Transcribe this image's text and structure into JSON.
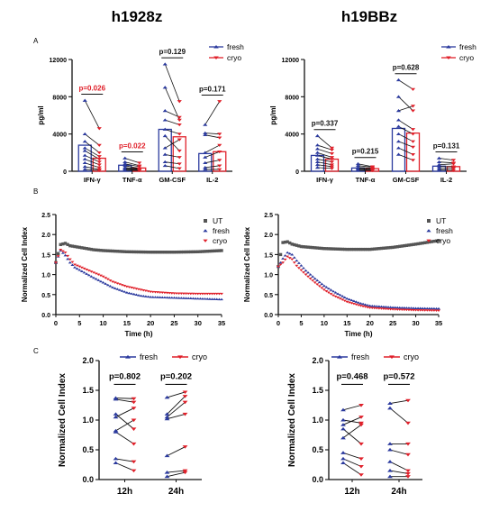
{
  "figure": {
    "col_titles": [
      "h1928z",
      "h19BBz"
    ],
    "panel_letters": [
      "A",
      "B",
      "C"
    ]
  },
  "colors": {
    "fresh": "#2b3a9e",
    "cryo": "#e0202a",
    "ut": "#555555",
    "sig": "#e0202a",
    "axis": "#111111"
  },
  "chart_data": [
    {
      "id": "A-left",
      "type": "bar",
      "title": "h1928z",
      "ylabel": "pg/ml",
      "ylim": [
        0,
        12000
      ],
      "yticks": [
        0,
        4000,
        8000,
        12000
      ],
      "categories": [
        "IFN-γ",
        "TNF-α",
        "GM-CSF",
        "IL-2"
      ],
      "legend": [
        "fresh",
        "cryo"
      ],
      "legend_position": "top-right",
      "series": [
        {
          "name": "fresh",
          "values": [
            2800,
            650,
            4500,
            1900
          ]
        },
        {
          "name": "cryo",
          "values": [
            1400,
            350,
            3700,
            2100
          ]
        }
      ],
      "pvalues": [
        {
          "text": "p=0.026",
          "significant": true
        },
        {
          "text": "p=0.022",
          "significant": true
        },
        {
          "text": "p=0.129",
          "significant": false
        },
        {
          "text": "p=0.171",
          "significant": false
        }
      ],
      "pairs": [
        [
          [
            7600,
            4600
          ],
          [
            4000,
            2800
          ],
          [
            3200,
            2000
          ],
          [
            2500,
            1600
          ],
          [
            2200,
            1300
          ],
          [
            1700,
            1000
          ],
          [
            1300,
            700
          ],
          [
            900,
            400
          ],
          [
            500,
            200
          ],
          [
            200,
            100
          ]
        ],
        [
          [
            1400,
            900
          ],
          [
            1000,
            600
          ],
          [
            800,
            500
          ],
          [
            600,
            300
          ],
          [
            400,
            250
          ],
          [
            300,
            200
          ],
          [
            200,
            150
          ],
          [
            100,
            80
          ]
        ],
        [
          [
            11500,
            7500
          ],
          [
            9000,
            5500
          ],
          [
            6500,
            5800
          ],
          [
            5500,
            5000
          ],
          [
            4500,
            4000
          ],
          [
            3800,
            2200
          ],
          [
            2500,
            3400
          ],
          [
            1800,
            1500
          ],
          [
            1000,
            800
          ],
          [
            600,
            300
          ]
        ],
        [
          [
            5000,
            7500
          ],
          [
            4100,
            4000
          ],
          [
            3900,
            3600
          ],
          [
            2000,
            2800
          ],
          [
            1500,
            2100
          ],
          [
            900,
            1200
          ],
          [
            400,
            600
          ],
          [
            200,
            200
          ]
        ]
      ]
    },
    {
      "id": "A-right",
      "type": "bar",
      "title": "h19BBz",
      "ylabel": "pg/ml",
      "ylim": [
        0,
        12000
      ],
      "yticks": [
        0,
        4000,
        8000,
        12000
      ],
      "categories": [
        "IFN-γ",
        "TNF-α",
        "GM-CSF",
        "IL-2"
      ],
      "legend": [
        "fresh",
        "cryo"
      ],
      "legend_position": "top-right",
      "series": [
        {
          "name": "fresh",
          "values": [
            1700,
            350,
            4600,
            550
          ]
        },
        {
          "name": "cryo",
          "values": [
            1300,
            280,
            4100,
            500
          ]
        }
      ],
      "pvalues": [
        {
          "text": "p=0.337",
          "significant": false
        },
        {
          "text": "p=0.215",
          "significant": false
        },
        {
          "text": "p=0.628",
          "significant": false
        },
        {
          "text": "p=0.131",
          "significant": false
        }
      ],
      "pairs": [
        [
          [
            3800,
            2500
          ],
          [
            2800,
            2300
          ],
          [
            2400,
            1900
          ],
          [
            2000,
            1500
          ],
          [
            1700,
            1300
          ],
          [
            1300,
            1000
          ],
          [
            1000,
            700
          ],
          [
            700,
            500
          ],
          [
            400,
            300
          ]
        ],
        [
          [
            800,
            500
          ],
          [
            600,
            450
          ],
          [
            400,
            350
          ],
          [
            300,
            250
          ],
          [
            200,
            150
          ],
          [
            100,
            80
          ]
        ],
        [
          [
            9800,
            8800
          ],
          [
            8000,
            6500
          ],
          [
            6500,
            7000
          ],
          [
            5500,
            4500
          ],
          [
            4800,
            4000
          ],
          [
            4000,
            3200
          ],
          [
            3200,
            2600
          ],
          [
            2500,
            1800
          ],
          [
            1800,
            1200
          ]
        ],
        [
          [
            1400,
            1200
          ],
          [
            1000,
            900
          ],
          [
            700,
            800
          ],
          [
            500,
            500
          ],
          [
            300,
            300
          ],
          [
            150,
            100
          ]
        ]
      ]
    },
    {
      "id": "B-left",
      "type": "line",
      "xlabel": "Time (h)",
      "ylabel": "Normalized Cell Index",
      "xlim": [
        0,
        35
      ],
      "ylim": [
        0,
        2.5
      ],
      "xticks": [
        0,
        5,
        10,
        15,
        20,
        25,
        30,
        35
      ],
      "yticks": [
        0,
        0.5,
        1.0,
        1.5,
        2.0,
        2.5
      ],
      "ytick_labels": [
        "0.0",
        "0.5",
        "1.0",
        "1.5",
        "2.0",
        "2.5"
      ],
      "legend": [
        "UT",
        "fresh",
        "cryo"
      ],
      "legend_position": "top-right",
      "series": [
        {
          "name": "UT",
          "x": [
            0,
            1,
            2,
            3,
            5,
            8,
            10,
            15,
            20,
            25,
            30,
            35
          ],
          "y": [
            1.3,
            1.75,
            1.78,
            1.72,
            1.68,
            1.62,
            1.6,
            1.57,
            1.56,
            1.56,
            1.57,
            1.6
          ]
        },
        {
          "name": "fresh",
          "x": [
            0,
            1,
            2,
            3,
            4,
            6,
            8,
            10,
            12,
            15,
            18,
            20,
            25,
            30,
            35
          ],
          "y": [
            1.3,
            1.6,
            1.48,
            1.3,
            1.18,
            1.05,
            0.92,
            0.8,
            0.68,
            0.55,
            0.47,
            0.44,
            0.42,
            0.4,
            0.38
          ]
        },
        {
          "name": "cryo",
          "x": [
            0,
            1,
            2,
            3,
            4,
            6,
            8,
            10,
            12,
            15,
            18,
            20,
            25,
            30,
            35
          ],
          "y": [
            1.3,
            1.62,
            1.55,
            1.38,
            1.25,
            1.15,
            1.05,
            0.95,
            0.82,
            0.7,
            0.62,
            0.57,
            0.53,
            0.52,
            0.52
          ]
        }
      ]
    },
    {
      "id": "B-right",
      "type": "line",
      "xlabel": "Time (h)",
      "ylabel": "Normalized Cell Index",
      "xlim": [
        0,
        35
      ],
      "ylim": [
        0,
        2.5
      ],
      "xticks": [
        0,
        5,
        10,
        15,
        20,
        25,
        30,
        35
      ],
      "yticks": [
        0,
        0.5,
        1.0,
        1.5,
        2.0,
        2.5
      ],
      "ytick_labels": [
        "0.0",
        "0.5",
        "1.0",
        "1.5",
        "2.0",
        "2.5"
      ],
      "legend": [
        "UT",
        "fresh",
        "cryo"
      ],
      "legend_position": "top-right",
      "series": [
        {
          "name": "UT",
          "x": [
            0,
            1,
            2,
            3,
            5,
            10,
            15,
            20,
            25,
            30,
            35
          ],
          "y": [
            1.2,
            1.8,
            1.82,
            1.76,
            1.7,
            1.65,
            1.63,
            1.63,
            1.68,
            1.76,
            1.85
          ]
        },
        {
          "name": "fresh",
          "x": [
            0,
            1,
            2,
            3,
            4,
            6,
            8,
            10,
            12,
            15,
            18,
            20,
            25,
            30,
            35
          ],
          "y": [
            1.2,
            1.4,
            1.55,
            1.5,
            1.35,
            1.1,
            0.9,
            0.72,
            0.58,
            0.4,
            0.28,
            0.22,
            0.18,
            0.16,
            0.15
          ]
        },
        {
          "name": "cryo",
          "x": [
            0,
            1,
            2,
            3,
            4,
            6,
            8,
            10,
            12,
            15,
            18,
            20,
            25,
            30,
            35
          ],
          "y": [
            1.2,
            1.3,
            1.45,
            1.38,
            1.22,
            1.0,
            0.8,
            0.62,
            0.48,
            0.32,
            0.22,
            0.17,
            0.13,
            0.11,
            0.1
          ]
        }
      ]
    },
    {
      "id": "C-left",
      "type": "scatter",
      "ylabel": "Normalized Cell Index",
      "ylim": [
        0,
        2.0
      ],
      "yticks": [
        0,
        0.5,
        1.0,
        1.5,
        2.0
      ],
      "ytick_labels": [
        "0.0",
        "0.5",
        "1.0",
        "1.5",
        "2.0"
      ],
      "categories": [
        "12h",
        "24h"
      ],
      "legend": [
        "fresh",
        "cryo"
      ],
      "legend_position": "top",
      "pvalues": [
        "p=0.802",
        "p=0.202"
      ],
      "pairs": [
        [
          [
            1.37,
            1.36
          ],
          [
            1.35,
            1.3
          ],
          [
            1.1,
            0.85
          ],
          [
            1.05,
            1.2
          ],
          [
            0.82,
            1.0
          ],
          [
            0.8,
            0.6
          ],
          [
            0.35,
            0.3
          ],
          [
            0.28,
            0.15
          ]
        ],
        [
          [
            1.38,
            1.47
          ],
          [
            1.1,
            1.4
          ],
          [
            1.05,
            1.3
          ],
          [
            1.02,
            1.1
          ],
          [
            0.4,
            0.55
          ],
          [
            0.12,
            0.15
          ],
          [
            0.05,
            0.12
          ]
        ]
      ]
    },
    {
      "id": "C-right",
      "type": "scatter",
      "ylabel": "Normalized Cell Index",
      "ylim": [
        0,
        2.0
      ],
      "yticks": [
        0,
        0.5,
        1.0,
        1.5,
        2.0
      ],
      "ytick_labels": [
        "0.0",
        "0.5",
        "1.0",
        "1.5",
        "2.0"
      ],
      "categories": [
        "12h",
        "24h"
      ],
      "legend": [
        "fresh",
        "cryo"
      ],
      "legend_position": "top",
      "pvalues": [
        "p=0.468",
        "p=0.572"
      ],
      "pairs": [
        [
          [
            1.17,
            1.25
          ],
          [
            1.0,
            0.95
          ],
          [
            0.92,
            1.05
          ],
          [
            0.85,
            0.6
          ],
          [
            0.7,
            0.92
          ],
          [
            0.45,
            0.35
          ],
          [
            0.35,
            0.22
          ],
          [
            0.28,
            0.08
          ]
        ],
        [
          [
            1.28,
            1.33
          ],
          [
            1.2,
            0.95
          ],
          [
            0.6,
            0.6
          ],
          [
            0.5,
            0.42
          ],
          [
            0.3,
            0.15
          ],
          [
            0.15,
            0.1
          ],
          [
            0.05,
            0.05
          ]
        ]
      ]
    }
  ]
}
